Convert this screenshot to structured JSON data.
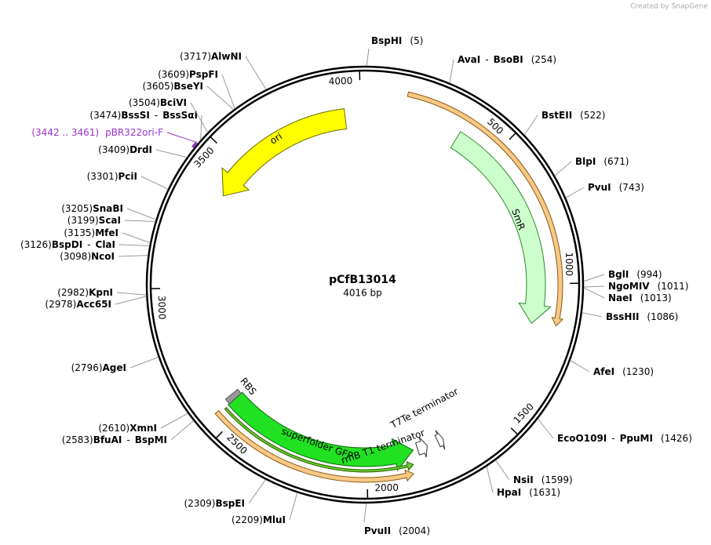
{
  "watermark": "Created by SnapGene",
  "plasmid": {
    "name": "pCfB13014",
    "length": {
      "value": 4016,
      "label": "4016 bp"
    }
  },
  "separator": "-",
  "ruler": [
    500,
    1000,
    1500,
    2000,
    2500,
    3000,
    3500,
    4000
  ],
  "sites": [
    {
      "names": [
        "BspHI"
      ],
      "position": {
        "value": 5,
        "label": "(5)"
      }
    },
    {
      "names": [
        "AvaI",
        "BsoBI"
      ],
      "position": {
        "value": 254,
        "label": "(254)"
      }
    },
    {
      "names": [
        "BstEII"
      ],
      "position": {
        "value": 522,
        "label": "(522)"
      }
    },
    {
      "names": [
        "BlpI"
      ],
      "position": {
        "value": 671,
        "label": "(671)"
      }
    },
    {
      "names": [
        "PvuI"
      ],
      "position": {
        "value": 743,
        "label": "(743)"
      }
    },
    {
      "names": [
        "BglI"
      ],
      "position": {
        "value": 994,
        "label": "(994)"
      }
    },
    {
      "names": [
        "NgoMIV"
      ],
      "position": {
        "value": 1011,
        "label": "(1011)"
      }
    },
    {
      "names": [
        "NaeI"
      ],
      "position": {
        "value": 1013,
        "label": "(1013)"
      }
    },
    {
      "names": [
        "BssHII"
      ],
      "position": {
        "value": 1086,
        "label": "(1086)"
      }
    },
    {
      "names": [
        "AfeI"
      ],
      "position": {
        "value": 1230,
        "label": "(1230)"
      }
    },
    {
      "names": [
        "EcoO109I",
        "PpuMI"
      ],
      "position": {
        "value": 1426,
        "label": "(1426)"
      }
    },
    {
      "names": [
        "NsiI"
      ],
      "position": {
        "value": 1599,
        "label": "(1599)"
      }
    },
    {
      "names": [
        "HpaI"
      ],
      "position": {
        "value": 1631,
        "label": "(1631)"
      }
    },
    {
      "names": [
        "PvuII"
      ],
      "position": {
        "value": 2004,
        "label": "(2004)"
      }
    },
    {
      "names": [
        "MluI"
      ],
      "position": {
        "value": 2209,
        "label": "(2209)"
      }
    },
    {
      "names": [
        "BspEI"
      ],
      "position": {
        "value": 2309,
        "label": "(2309)"
      }
    },
    {
      "names": [
        "BfuAI",
        "BspMI"
      ],
      "position": {
        "value": 2583,
        "label": "(2583)"
      }
    },
    {
      "names": [
        "XmnI"
      ],
      "position": {
        "value": 2610,
        "label": "(2610)"
      }
    },
    {
      "names": [
        "AgeI"
      ],
      "position": {
        "value": 2796,
        "label": "(2796)"
      }
    },
    {
      "names": [
        "KpnI"
      ],
      "position": {
        "value": 2982,
        "label": "(2982)"
      }
    },
    {
      "names": [
        "Acc65I"
      ],
      "position": {
        "value": 2978,
        "label": "(2978)"
      }
    },
    {
      "names": [
        "NcoI"
      ],
      "position": {
        "value": 3098,
        "label": "(3098)"
      }
    },
    {
      "names": [
        "BspDI",
        "ClaI"
      ],
      "position": {
        "value": 3126,
        "label": "(3126)"
      }
    },
    {
      "names": [
        "MfeI"
      ],
      "position": {
        "value": 3135,
        "label": "(3135)"
      }
    },
    {
      "names": [
        "ScaI"
      ],
      "position": {
        "value": 3199,
        "label": "(3199)"
      }
    },
    {
      "names": [
        "SnaBI"
      ],
      "position": {
        "value": 3205,
        "label": "(3205)"
      }
    },
    {
      "names": [
        "PciI"
      ],
      "position": {
        "value": 3301,
        "label": "(3301)"
      }
    },
    {
      "names": [
        "DrdI"
      ],
      "position": {
        "value": 3409,
        "label": "(3409)"
      }
    },
    {
      "names": [
        "BssSI",
        "BssSαI"
      ],
      "position": {
        "value": 3474,
        "label": "(3474)"
      }
    },
    {
      "names": [
        "BciVI"
      ],
      "position": {
        "value": 3504,
        "label": "(3504)"
      }
    },
    {
      "names": [
        "BseYI"
      ],
      "position": {
        "value": 3605,
        "label": "(3605)"
      }
    },
    {
      "names": [
        "PspFI"
      ],
      "position": {
        "value": 3609,
        "label": "(3609)"
      }
    },
    {
      "names": [
        "AlwNI"
      ],
      "position": {
        "value": 3717,
        "label": "(3717)"
      }
    }
  ],
  "primers": [
    {
      "name": "pBR322ori-F",
      "range_label": "(3442 .. 3461)",
      "start": 3442,
      "end": 3461,
      "color": "#9933cc"
    }
  ],
  "features": [
    {
      "label": "ori",
      "start": 3370,
      "end": 3941,
      "direction": "reverse",
      "color": "#ffff00"
    },
    {
      "label": "SmR",
      "start": 357,
      "end": 1150,
      "direction": "forward",
      "color": "#ccffcc"
    },
    {
      "start": 142,
      "end": 1140,
      "direction": "forward",
      "color": "#f8c888"
    },
    {
      "start": 1847,
      "end": 2557,
      "direction": "reverse",
      "color": "#f8c888"
    },
    {
      "label": "superfolder GFP",
      "start": 1827,
      "end": 2551,
      "direction": "reverse",
      "color": "#22e022"
    },
    {
      "start": 1840,
      "end": 2548,
      "direction": "reverse",
      "color": "#66cc33"
    },
    {
      "label": "RBS",
      "start": 2551,
      "end": 2572,
      "direction": "none",
      "color": "#999999"
    },
    {
      "label": "rrnB T1 terminator",
      "start": 1772,
      "end": 1810,
      "direction": "reverse",
      "color": "#ffffff"
    },
    {
      "label": "T7Te terminator",
      "start": 1708,
      "end": 1730,
      "direction": "reverse",
      "color": "#ffffff"
    }
  ]
}
